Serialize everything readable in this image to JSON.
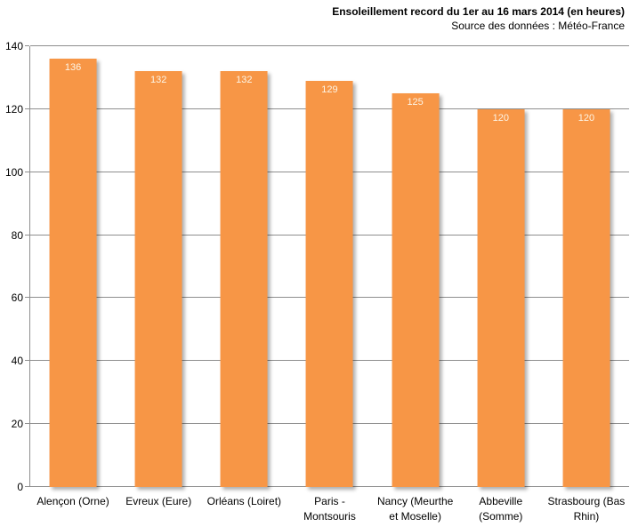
{
  "header": {
    "title": "Ensoleillement record du 1er au 16 mars 2014 (en heures)",
    "subtitle": "Source des données : Météo-France"
  },
  "chart_data": {
    "type": "bar",
    "title": "Ensoleillement record du 1er au 16 mars 2014 (en heures)",
    "subtitle": "Source des données : Météo-France",
    "categories": [
      "Alençon (Orne)",
      "Evreux (Eure)",
      "Orléans (Loiret)",
      "Paris - Montsouris",
      "Nancy (Meurthe et Moselle)",
      "Abbeville (Somme)",
      "Strasbourg (Bas Rhin)"
    ],
    "values": [
      136,
      132,
      132,
      129,
      125,
      120,
      120
    ],
    "xlabel": "",
    "ylabel": "",
    "ylim": [
      0,
      140
    ],
    "yticks": [
      0,
      20,
      40,
      60,
      80,
      100,
      120,
      140
    ],
    "grid": true,
    "legend": "none",
    "colors": {
      "bar": "#F79646",
      "value_label": "#FDF5E6",
      "gridline": "#8e8e8e",
      "axis": "#8e8e8e",
      "text": "#000000",
      "background": "#ffffff"
    }
  }
}
